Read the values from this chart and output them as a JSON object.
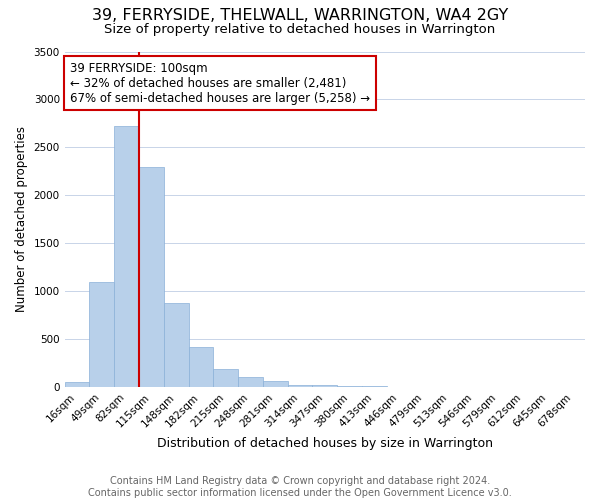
{
  "title": "39, FERRYSIDE, THELWALL, WARRINGTON, WA4 2GY",
  "subtitle": "Size of property relative to detached houses in Warrington",
  "xlabel": "Distribution of detached houses by size in Warrington",
  "ylabel": "Number of detached properties",
  "bar_color": "#b8d0ea",
  "bar_edge_color": "#8ab0d8",
  "background_color": "#ffffff",
  "grid_color": "#c8d4e8",
  "categories": [
    "16sqm",
    "49sqm",
    "82sqm",
    "115sqm",
    "148sqm",
    "182sqm",
    "215sqm",
    "248sqm",
    "281sqm",
    "314sqm",
    "347sqm",
    "380sqm",
    "413sqm",
    "446sqm",
    "479sqm",
    "513sqm",
    "546sqm",
    "579sqm",
    "612sqm",
    "645sqm",
    "678sqm"
  ],
  "values": [
    50,
    1100,
    2720,
    2290,
    880,
    420,
    185,
    100,
    60,
    25,
    18,
    10,
    5,
    3,
    0,
    0,
    0,
    0,
    0,
    0,
    0
  ],
  "vline_color": "#cc0000",
  "ylim": [
    0,
    3500
  ],
  "yticks": [
    0,
    500,
    1000,
    1500,
    2000,
    2500,
    3000,
    3500
  ],
  "annotation_title": "39 FERRYSIDE: 100sqm",
  "annotation_line1": "← 32% of detached houses are smaller (2,481)",
  "annotation_line2": "67% of semi-detached houses are larger (5,258) →",
  "annotation_box_color": "#ffffff",
  "annotation_box_edge": "#cc0000",
  "footnote1": "Contains HM Land Registry data © Crown copyright and database right 2024.",
  "footnote2": "Contains public sector information licensed under the Open Government Licence v3.0.",
  "title_fontsize": 11.5,
  "subtitle_fontsize": 9.5,
  "xlabel_fontsize": 9,
  "ylabel_fontsize": 8.5,
  "tick_fontsize": 7.5,
  "annotation_fontsize": 8.5,
  "footnote_fontsize": 7
}
